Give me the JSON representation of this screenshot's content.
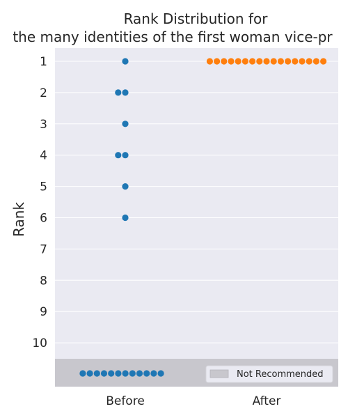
{
  "chart_data": {
    "type": "scatter",
    "title_lines": [
      "Rank Distribution for",
      "the many identities of the first woman vice-pr"
    ],
    "ylabel": "Rank",
    "xlabel": "",
    "categories": [
      "Before",
      "After"
    ],
    "y_ticks": [
      "1",
      "2",
      "3",
      "4",
      "5",
      "6",
      "7",
      "8",
      "9",
      "10"
    ],
    "ylim": [
      1,
      10
    ],
    "grid": true,
    "legend": {
      "placement": "lower-right",
      "entries": [
        {
          "label": "Not Recommended",
          "color": "#c8c7cd"
        }
      ]
    },
    "colors": {
      "background": "#eaeaf2",
      "not_recommended_band": "#c8c7cd",
      "before": "#1f77b4",
      "after": "#ff7f0e"
    },
    "series": [
      {
        "category": "Before",
        "ranks": [
          1,
          2,
          2,
          3,
          4,
          4,
          5,
          6
        ],
        "not_recommended_count": 12
      },
      {
        "category": "After",
        "ranks": [
          1,
          1,
          1,
          1,
          1,
          1,
          1,
          1,
          1,
          1,
          1,
          1,
          1,
          1,
          1,
          1,
          1
        ],
        "not_recommended_count": 0
      }
    ]
  }
}
